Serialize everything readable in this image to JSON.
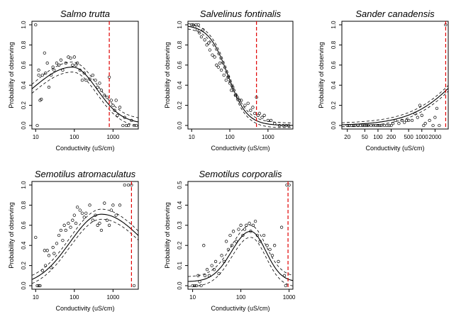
{
  "chart_data": [
    {
      "type": "scatter",
      "title": "Salmo trutta",
      "xlabel": "Conductivity (uS/cm)",
      "ylabel": "Probability of observing",
      "xscale": "log",
      "xlim": [
        8,
        4500
      ],
      "ylim": [
        0,
        1
      ],
      "xticks": [
        10,
        100,
        1000
      ],
      "yticks": [
        0.0,
        0.2,
        0.4,
        0.6,
        0.8,
        1.0
      ],
      "xtick_labels": [
        "10",
        "100",
        "1000"
      ],
      "ytick_labels": [
        "0.0",
        "0.2",
        "0.4",
        "0.6",
        "0.8",
        "1.0"
      ],
      "threshold_x": 800,
      "curve": {
        "peak_log": 1.95,
        "peak": 0.58,
        "lw": 1.5,
        "rw": 0.9,
        "base": 0.02,
        "band": 0.05
      },
      "points": [
        [
          10,
          1.0
        ],
        [
          11,
          0.0
        ],
        [
          12,
          0.5
        ],
        [
          12,
          0.55
        ],
        [
          13,
          0.25
        ],
        [
          14,
          0.26
        ],
        [
          15,
          0.5
        ],
        [
          17,
          0.72
        ],
        [
          18,
          0.52
        ],
        [
          20,
          0.62
        ],
        [
          22,
          0.38
        ],
        [
          25,
          0.5
        ],
        [
          28,
          0.58
        ],
        [
          30,
          0.55
        ],
        [
          35,
          0.62
        ],
        [
          40,
          0.6
        ],
        [
          45,
          0.65
        ],
        [
          50,
          0.55
        ],
        [
          60,
          0.62
        ],
        [
          70,
          0.68
        ],
        [
          80,
          0.67
        ],
        [
          90,
          0.6
        ],
        [
          100,
          0.68
        ],
        [
          110,
          0.6
        ],
        [
          120,
          0.62
        ],
        [
          140,
          0.55
        ],
        [
          160,
          0.45
        ],
        [
          180,
          0.52
        ],
        [
          200,
          0.45
        ],
        [
          250,
          0.46
        ],
        [
          300,
          0.5
        ],
        [
          350,
          0.45
        ],
        [
          400,
          0.38
        ],
        [
          450,
          0.42
        ],
        [
          500,
          0.35
        ],
        [
          600,
          0.3
        ],
        [
          700,
          0.28
        ],
        [
          800,
          0.48
        ],
        [
          900,
          0.25
        ],
        [
          1000,
          0.2
        ],
        [
          1100,
          0.15
        ],
        [
          1200,
          0.25
        ],
        [
          1300,
          0.1
        ],
        [
          1500,
          0.18
        ],
        [
          1800,
          0.0
        ],
        [
          2000,
          0.08
        ],
        [
          2200,
          0.0
        ],
        [
          2500,
          0.0
        ],
        [
          3000,
          0.05
        ],
        [
          3500,
          0.0
        ],
        [
          4000,
          0.0
        ]
      ]
    },
    {
      "type": "scatter",
      "title": "Salvelinus fontinalis",
      "xlabel": "Conductivity (uS/cm)",
      "ylabel": "Probability of observing",
      "xscale": "log",
      "xlim": [
        8,
        4500
      ],
      "ylim": [
        0,
        1
      ],
      "xticks": [
        10,
        100,
        1000
      ],
      "yticks": [
        0.0,
        0.2,
        0.4,
        0.6,
        0.8,
        1.0
      ],
      "xtick_labels": [
        "10",
        "100",
        "1000"
      ],
      "ytick_labels": [
        "0.0",
        "0.2",
        "0.4",
        "0.6",
        "0.8",
        "1.0"
      ],
      "threshold_x": 500,
      "curve": {
        "sigmoid": true,
        "mid_log": 1.95,
        "k": 4.0,
        "band": 0.03
      },
      "points": [
        [
          10,
          1.0
        ],
        [
          11,
          1.0
        ],
        [
          12,
          0.98
        ],
        [
          13,
          1.0
        ],
        [
          14,
          0.95
        ],
        [
          15,
          1.0
        ],
        [
          16,
          0.92
        ],
        [
          18,
          0.88
        ],
        [
          20,
          0.95
        ],
        [
          22,
          0.85
        ],
        [
          25,
          0.8
        ],
        [
          28,
          0.82
        ],
        [
          30,
          0.75
        ],
        [
          35,
          0.7
        ],
        [
          40,
          0.68
        ],
        [
          45,
          0.6
        ],
        [
          50,
          0.58
        ],
        [
          55,
          0.62
        ],
        [
          60,
          0.55
        ],
        [
          70,
          0.5
        ],
        [
          80,
          0.45
        ],
        [
          90,
          0.48
        ],
        [
          100,
          0.42
        ],
        [
          110,
          0.35
        ],
        [
          120,
          0.38
        ],
        [
          140,
          0.3
        ],
        [
          160,
          0.28
        ],
        [
          180,
          0.25
        ],
        [
          200,
          0.25
        ],
        [
          250,
          0.2
        ],
        [
          300,
          0.22
        ],
        [
          350,
          0.15
        ],
        [
          400,
          0.18
        ],
        [
          450,
          0.12
        ],
        [
          500,
          0.28
        ],
        [
          550,
          0.1
        ],
        [
          600,
          0.12
        ],
        [
          700,
          0.08
        ],
        [
          800,
          0.1
        ],
        [
          1000,
          0.05
        ],
        [
          1200,
          0.05
        ],
        [
          1500,
          0.02
        ],
        [
          2000,
          0.0
        ],
        [
          2500,
          0.0
        ],
        [
          3000,
          0.0
        ],
        [
          3500,
          0.0
        ]
      ]
    },
    {
      "type": "scatter",
      "title": "Sander canadensis",
      "xlabel": "Conductivity (uS/cm)",
      "ylabel": "Probability of observing",
      "xscale": "log",
      "xlim": [
        15,
        4000
      ],
      "ylim": [
        0,
        1
      ],
      "xticks": [
        20,
        50,
        100,
        200,
        500,
        1000,
        2000
      ],
      "yticks": [
        0.0,
        0.2,
        0.4,
        0.6,
        0.8,
        1.0
      ],
      "xtick_labels": [
        "20",
        "50",
        "100",
        "200",
        "500",
        "1000",
        "2000"
      ],
      "ytick_labels": [
        "0.0",
        "0.2",
        "0.4",
        "0.6",
        "0.8",
        "1.0"
      ],
      "threshold_x": 3500,
      "curve": {
        "sigmoid": true,
        "mid_log": 3.9,
        "k": -1.8,
        "band": 0.03
      },
      "points": [
        [
          20,
          0.0
        ],
        [
          22,
          0.0
        ],
        [
          25,
          0.0
        ],
        [
          28,
          0.0
        ],
        [
          30,
          0.0
        ],
        [
          35,
          0.0
        ],
        [
          40,
          0.0
        ],
        [
          45,
          0.0
        ],
        [
          50,
          0.0
        ],
        [
          55,
          0.0
        ],
        [
          60,
          0.0
        ],
        [
          70,
          0.0
        ],
        [
          80,
          0.0
        ],
        [
          90,
          0.0
        ],
        [
          100,
          0.0
        ],
        [
          110,
          0.0
        ],
        [
          120,
          0.0
        ],
        [
          140,
          0.0
        ],
        [
          160,
          0.0
        ],
        [
          180,
          0.0
        ],
        [
          200,
          0.0
        ],
        [
          220,
          0.02
        ],
        [
          250,
          0.05
        ],
        [
          300,
          0.02
        ],
        [
          350,
          0.05
        ],
        [
          400,
          0.03
        ],
        [
          450,
          0.05
        ],
        [
          500,
          0.05
        ],
        [
          600,
          0.05
        ],
        [
          700,
          0.12
        ],
        [
          800,
          0.08
        ],
        [
          900,
          0.2
        ],
        [
          1000,
          0.1
        ],
        [
          1100,
          0.0
        ],
        [
          1200,
          0.02
        ],
        [
          1500,
          0.05
        ],
        [
          1800,
          0.0
        ],
        [
          2000,
          0.08
        ],
        [
          2200,
          0.17
        ],
        [
          2500,
          0.0
        ],
        [
          3500,
          1.0
        ]
      ]
    },
    {
      "type": "scatter",
      "title": "Semotilus atromaculatus",
      "xlabel": "Conductivity (uS/cm)",
      "ylabel": "Probability of observing",
      "xscale": "log",
      "xlim": [
        8,
        4500
      ],
      "ylim": [
        0,
        1
      ],
      "xticks": [
        10,
        100,
        1000
      ],
      "yticks": [
        0.0,
        0.2,
        0.4,
        0.6,
        0.8,
        1.0
      ],
      "xtick_labels": [
        "10",
        "100",
        "1000"
      ],
      "ytick_labels": [
        "0.0",
        "0.2",
        "0.4",
        "0.6",
        "0.8",
        "1.0"
      ],
      "threshold_x": 3000,
      "curve": {
        "peak_log": 2.7,
        "peak": 0.71,
        "lw": 1.15,
        "rw": 1.6,
        "base": 0.0,
        "band": 0.05
      },
      "points": [
        [
          10,
          0.48
        ],
        [
          11,
          0.0
        ],
        [
          12,
          0.0
        ],
        [
          13,
          0.0
        ],
        [
          15,
          0.15
        ],
        [
          17,
          0.35
        ],
        [
          18,
          0.2
        ],
        [
          20,
          0.35
        ],
        [
          22,
          0.3
        ],
        [
          25,
          0.18
        ],
        [
          28,
          0.38
        ],
        [
          30,
          0.32
        ],
        [
          35,
          0.42
        ],
        [
          40,
          0.5
        ],
        [
          45,
          0.55
        ],
        [
          50,
          0.45
        ],
        [
          55,
          0.6
        ],
        [
          60,
          0.55
        ],
        [
          70,
          0.62
        ],
        [
          80,
          0.58
        ],
        [
          90,
          0.65
        ],
        [
          100,
          0.7
        ],
        [
          110,
          0.62
        ],
        [
          120,
          0.78
        ],
        [
          140,
          0.75
        ],
        [
          160,
          0.72
        ],
        [
          180,
          0.68
        ],
        [
          200,
          0.72
        ],
        [
          250,
          0.8
        ],
        [
          300,
          0.65
        ],
        [
          350,
          0.7
        ],
        [
          400,
          0.6
        ],
        [
          450,
          0.62
        ],
        [
          500,
          0.55
        ],
        [
          600,
          0.82
        ],
        [
          700,
          0.65
        ],
        [
          800,
          0.6
        ],
        [
          900,
          0.75
        ],
        [
          1000,
          0.8
        ],
        [
          1200,
          0.7
        ],
        [
          1500,
          0.8
        ],
        [
          2000,
          1.0
        ],
        [
          2500,
          1.0
        ],
        [
          3000,
          1.0
        ],
        [
          3500,
          0.0
        ]
      ]
    },
    {
      "type": "scatter",
      "title": "Semotilus corporalis",
      "xlabel": "Conductivity (uS/cm)",
      "ylabel": "Probability of observing",
      "xscale": "log",
      "xlim": [
        8,
        1200
      ],
      "ylim": [
        0,
        0.5
      ],
      "xticks": [
        10,
        100,
        1000
      ],
      "yticks": [
        0.0,
        0.1,
        0.2,
        0.3,
        0.4,
        0.5
      ],
      "xtick_labels": [
        "10",
        "100",
        "1000"
      ],
      "ytick_labels": [
        "0.0",
        "0.1",
        "0.2",
        "0.3",
        "0.4",
        "0.5"
      ],
      "threshold_x": 950,
      "curve": {
        "peak_log": 2.2,
        "peak": 0.27,
        "lw": 0.55,
        "rw": 0.45,
        "base": 0.02,
        "band": 0.03
      },
      "points": [
        [
          10,
          0.0
        ],
        [
          11,
          0.0
        ],
        [
          12,
          0.0
        ],
        [
          13,
          0.05
        ],
        [
          14,
          0.02
        ],
        [
          15,
          0.0
        ],
        [
          17,
          0.2
        ],
        [
          18,
          0.05
        ],
        [
          20,
          0.08
        ],
        [
          22,
          0.05
        ],
        [
          25,
          0.1
        ],
        [
          28,
          0.08
        ],
        [
          30,
          0.12
        ],
        [
          35,
          0.06
        ],
        [
          40,
          0.15
        ],
        [
          45,
          0.12
        ],
        [
          50,
          0.22
        ],
        [
          55,
          0.18
        ],
        [
          60,
          0.25
        ],
        [
          65,
          0.2
        ],
        [
          70,
          0.27
        ],
        [
          80,
          0.22
        ],
        [
          90,
          0.28
        ],
        [
          100,
          0.3
        ],
        [
          110,
          0.25
        ],
        [
          120,
          0.28
        ],
        [
          130,
          0.3
        ],
        [
          150,
          0.31
        ],
        [
          160,
          0.27
        ],
        [
          180,
          0.3
        ],
        [
          200,
          0.32
        ],
        [
          220,
          0.25
        ],
        [
          250,
          0.22
        ],
        [
          300,
          0.25
        ],
        [
          350,
          0.2
        ],
        [
          400,
          0.18
        ],
        [
          450,
          0.15
        ],
        [
          500,
          0.2
        ],
        [
          600,
          0.12
        ],
        [
          700,
          0.29
        ],
        [
          800,
          0.05
        ],
        [
          850,
          0.0
        ],
        [
          900,
          0.5
        ],
        [
          1000,
          0.5
        ]
      ]
    }
  ]
}
